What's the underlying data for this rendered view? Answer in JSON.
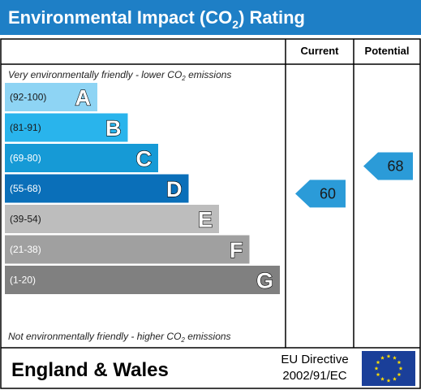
{
  "chart_data": {
    "type": "bar",
    "title": "Environmental Impact (CO",
    "title_sub": "2",
    "title_suffix": ") Rating",
    "columns": {
      "current": "Current",
      "potential": "Potential"
    },
    "top_note": {
      "before": "Very environmentally friendly - lower CO",
      "sub": "2",
      "after": " emissions"
    },
    "bottom_note": {
      "before": "Not environmentally friendly - higher CO",
      "sub": "2",
      "after": " emissions"
    },
    "bands": [
      {
        "letter": "A",
        "range": "(92-100)",
        "color": "#8ed4f4",
        "range_color": "#1a1a1a"
      },
      {
        "letter": "B",
        "range": "(81-91)",
        "color": "#29b4ec",
        "range_color": "#1a1a1a"
      },
      {
        "letter": "C",
        "range": "(69-80)",
        "color": "#169ad6",
        "range_color": "#ffffff"
      },
      {
        "letter": "D",
        "range": "(55-68)",
        "color": "#0a6fb9",
        "range_color": "#ffffff"
      },
      {
        "letter": "E",
        "range": "(39-54)",
        "color": "#bdbdbd",
        "range_color": "#1a1a1a"
      },
      {
        "letter": "F",
        "range": "(21-38)",
        "color": "#a0a0a0",
        "range_color": "#ffffff"
      },
      {
        "letter": "G",
        "range": "(1-20)",
        "color": "#808080",
        "range_color": "#ffffff"
      }
    ],
    "current": {
      "value": 60,
      "band": "D"
    },
    "potential": {
      "value": 68,
      "band": "D"
    },
    "current_label": "60",
    "potential_label": "68",
    "arrow_color": "#2b9bd8"
  },
  "footer": {
    "region": "England & Wales",
    "directive_line1": "EU Directive",
    "directive_line2": "2002/91/EC"
  },
  "colors": {
    "header": "#1e7fc6",
    "flag": "#1a3f99",
    "stars": "#ffdd00"
  }
}
